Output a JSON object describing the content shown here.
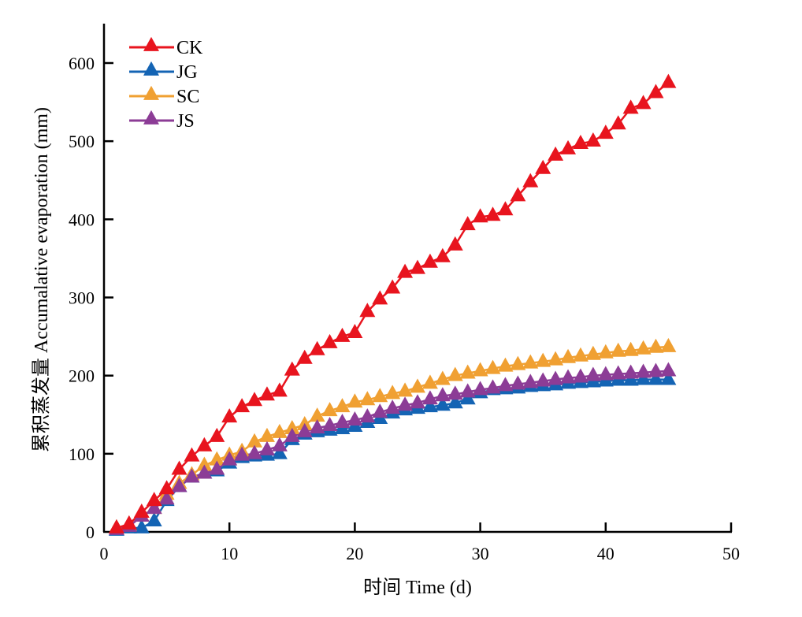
{
  "chart_data": {
    "type": "line",
    "title": "",
    "xlabel": "时间 Time (d)",
    "ylabel": "累积蒸发量 Accumalative evaporation (mm)",
    "xlim": [
      0,
      50
    ],
    "ylim": [
      0,
      650
    ],
    "xticks": [
      0,
      10,
      20,
      30,
      40,
      50
    ],
    "yticks": [
      0,
      100,
      200,
      300,
      400,
      500,
      600
    ],
    "grid": false,
    "legend_position": "top-left",
    "marker": "triangle",
    "x": [
      1,
      2,
      3,
      4,
      5,
      6,
      7,
      8,
      9,
      10,
      11,
      12,
      13,
      14,
      15,
      16,
      17,
      18,
      19,
      20,
      21,
      22,
      23,
      24,
      25,
      26,
      27,
      28,
      29,
      30,
      31,
      32,
      33,
      34,
      35,
      36,
      37,
      38,
      39,
      40,
      41,
      42,
      43,
      44,
      45
    ],
    "series": [
      {
        "name": "CK",
        "color": "#e8141e",
        "values": [
          5,
          10,
          25,
          40,
          55,
          80,
          97,
          110,
          122,
          147,
          160,
          168,
          175,
          180,
          207,
          222,
          233,
          242,
          250,
          255,
          282,
          298,
          312,
          332,
          337,
          345,
          352,
          367,
          393,
          403,
          405,
          412,
          430,
          448,
          465,
          482,
          490,
          497,
          500,
          510,
          522,
          542,
          548,
          562,
          575
        ]
      },
      {
        "name": "JG",
        "color": "#1464b4",
        "values": [
          2,
          5,
          5,
          14,
          40,
          58,
          70,
          75,
          78,
          88,
          95,
          97,
          98,
          100,
          118,
          125,
          128,
          130,
          132,
          135,
          140,
          145,
          152,
          156,
          158,
          160,
          162,
          165,
          170,
          178,
          182,
          183,
          184,
          186,
          187,
          188,
          190,
          191,
          192,
          193,
          194,
          194,
          195,
          195,
          195
        ]
      },
      {
        "name": "SC",
        "color": "#f0a032",
        "values": [
          5,
          8,
          20,
          30,
          48,
          62,
          73,
          85,
          92,
          98,
          103,
          115,
          122,
          127,
          132,
          137,
          148,
          155,
          160,
          166,
          169,
          173,
          177,
          180,
          185,
          190,
          195,
          200,
          203,
          206,
          209,
          212,
          214,
          216,
          218,
          220,
          223,
          225,
          227,
          229,
          231,
          232,
          234,
          236,
          237
        ]
      },
      {
        "name": "JS",
        "color": "#8c3c96",
        "values": [
          3,
          7,
          20,
          30,
          42,
          58,
          70,
          75,
          80,
          92,
          98,
          100,
          105,
          110,
          122,
          128,
          133,
          136,
          140,
          143,
          147,
          153,
          158,
          162,
          165,
          170,
          174,
          176,
          179,
          182,
          184,
          187,
          189,
          191,
          193,
          195,
          197,
          198,
          200,
          201,
          202,
          203,
          204,
          205,
          206
        ]
      }
    ]
  }
}
